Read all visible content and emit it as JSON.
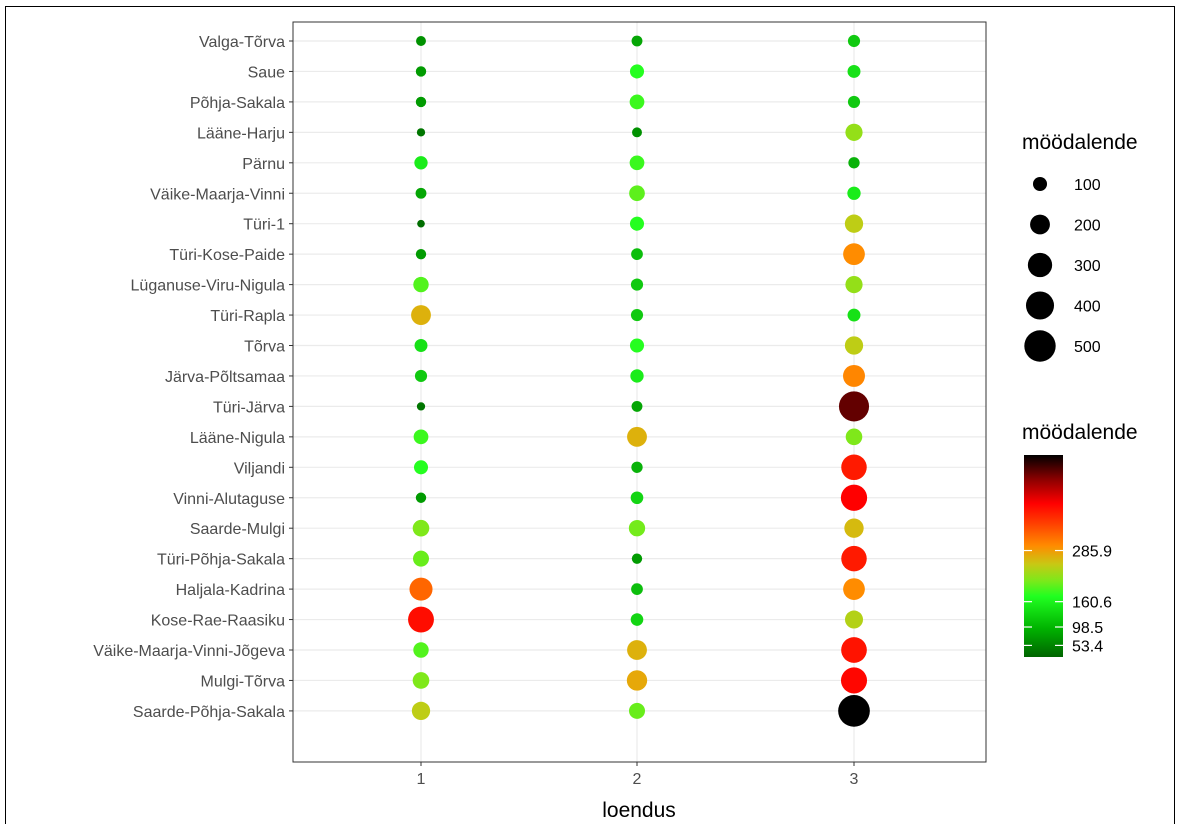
{
  "chart_data": {
    "type": "scatter",
    "xlabel": "loendus",
    "ylabel": "",
    "x_categories": [
      "1",
      "2",
      "3"
    ],
    "y_categories": [
      "Valga-Tõrva",
      "Saue",
      "Põhja-Sakala",
      "Lääne-Harju",
      "Pärnu",
      "Väike-Maarja-Vinni",
      "Türi-1",
      "Türi-Kose-Paide",
      "Lüganuse-Viru-Nigula",
      "Türi-Rapla",
      "Tõrva",
      "Järva-Põltsamaa",
      "Türi-Järva",
      "Lääne-Nigula",
      "Viljandi",
      "Vinni-Alutaguse",
      "Saarde-Mulgi",
      "Türi-Põhja-Sakala",
      "Haljala-Kadrina",
      "Kose-Rae-Raasiku",
      "Väike-Maarja-Vinni-Jõgeva",
      "Mulgi-Tõrva",
      "Saarde-Põhja-Sakala"
    ],
    "series": [
      {
        "x": "1",
        "values": [
          50,
          55,
          55,
          35,
          90,
          60,
          30,
          55,
          120,
          200,
          85,
          75,
          35,
          110,
          100,
          55,
          140,
          130,
          270,
          340,
          120,
          140,
          170
        ]
      },
      {
        "x": "2",
        "values": [
          60,
          100,
          110,
          50,
          110,
          125,
          100,
          70,
          75,
          75,
          100,
          90,
          60,
          200,
          65,
          80,
          135,
          55,
          70,
          80,
          200,
          210,
          130
        ]
      },
      {
        "x": "3",
        "values": [
          75,
          85,
          75,
          150,
          65,
          90,
          170,
          240,
          150,
          85,
          170,
          245,
          460,
          140,
          330,
          350,
          190,
          330,
          240,
          165,
          335,
          345,
          510
        ]
      }
    ],
    "size_legend": {
      "title": "möödalende",
      "values": [
        100,
        200,
        300,
        400,
        500
      ]
    },
    "color_legend": {
      "title": "möödalende",
      "breaks": [
        53.4,
        98.5,
        160.6,
        285.9
      ],
      "break_labels": [
        "53.4",
        "98.5",
        "160.6",
        "285.9"
      ],
      "min": 25,
      "max": 520
    },
    "grid": true,
    "legend_position": "right"
  }
}
